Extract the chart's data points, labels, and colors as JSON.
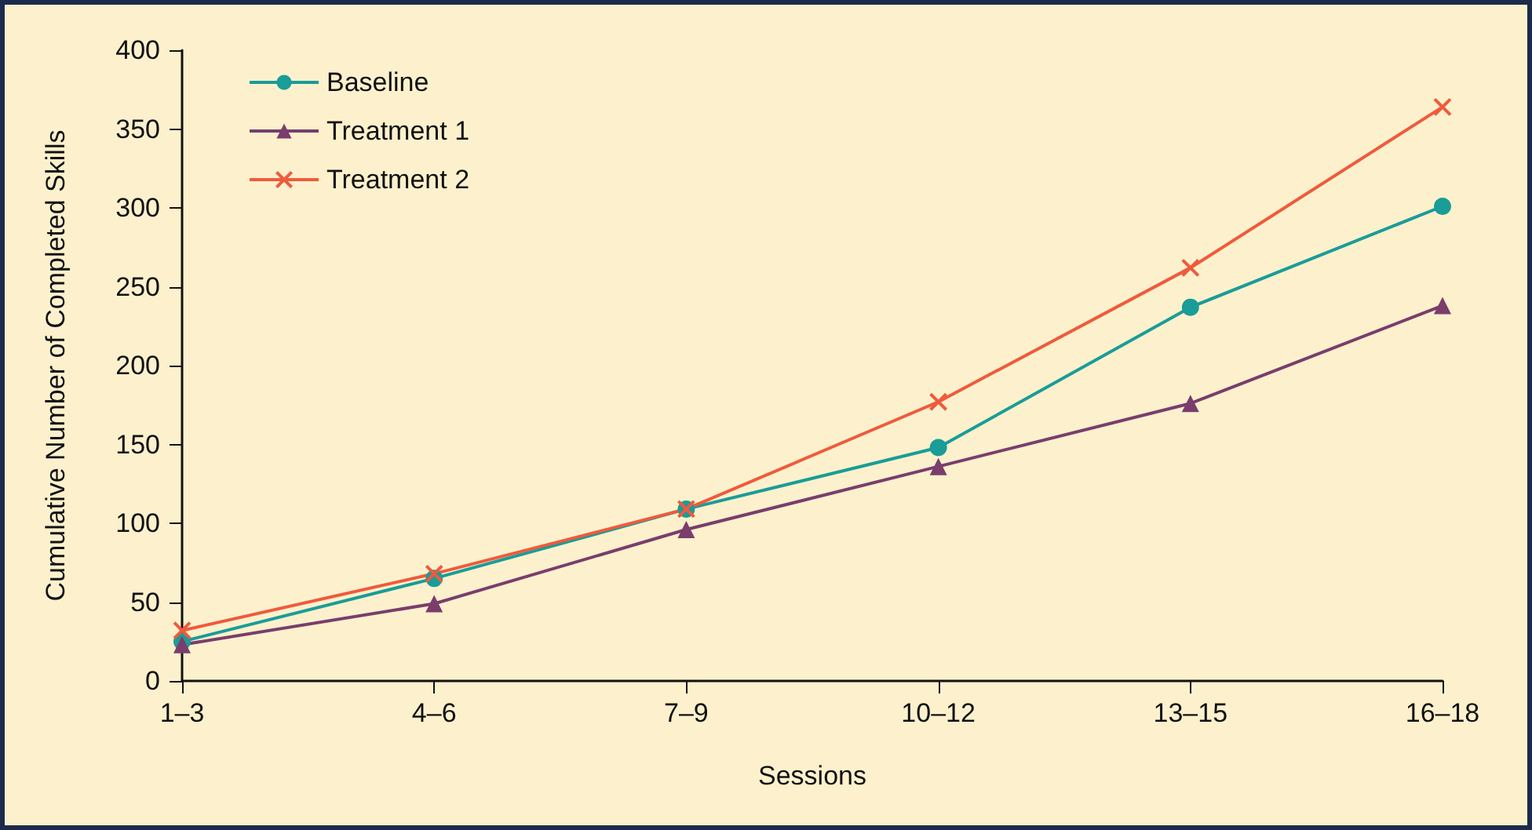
{
  "chart_data": {
    "type": "line",
    "xlabel": "Sessions",
    "ylabel": "Cumulative Number of Completed Skills",
    "categories": [
      "1–3",
      "4–6",
      "7–9",
      "10–12",
      "13–15",
      "16–18"
    ],
    "series": [
      {
        "name": "Baseline",
        "color": "#1a9c98",
        "marker": "circle",
        "values": [
          25,
          65,
          109,
          148,
          237,
          301
        ]
      },
      {
        "name": "Treatment 1",
        "color": "#7a3d6c",
        "marker": "triangle",
        "values": [
          23,
          49,
          96,
          136,
          176,
          238
        ]
      },
      {
        "name": "Treatment 2",
        "color": "#f05a3c",
        "marker": "cross",
        "values": [
          32,
          68,
          109,
          177,
          262,
          364
        ]
      }
    ],
    "ylim": [
      0,
      400
    ],
    "yticks": [
      0,
      50,
      100,
      150,
      200,
      250,
      300,
      350,
      400
    ],
    "grid": false,
    "legend": "top left"
  }
}
